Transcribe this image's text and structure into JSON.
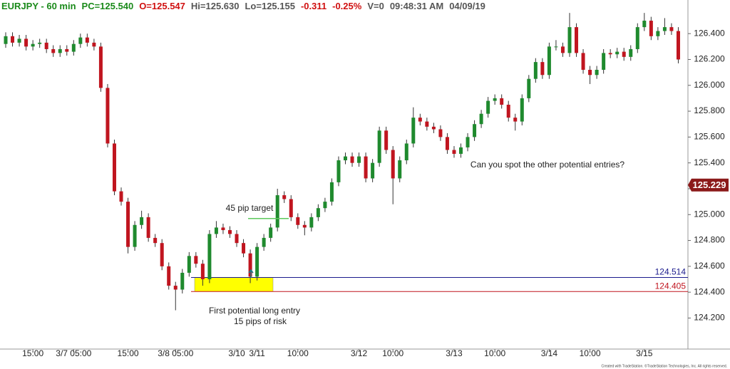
{
  "header": [
    {
      "text": "EURJPY - 60 min",
      "color": "#1a8a1a"
    },
    {
      "text": "PC=125.540",
      "color": "#1a8a1a"
    },
    {
      "text": "O=125.547",
      "color": "#d01010"
    },
    {
      "text": "Hi=125.630",
      "color": "#555555"
    },
    {
      "text": "Lo=125.155",
      "color": "#555555"
    },
    {
      "text": "-0.311",
      "color": "#d01010"
    },
    {
      "text": "-0.25%",
      "color": "#d01010"
    },
    {
      "text": "V=0",
      "color": "#555555"
    },
    {
      "text": "09:48:31 AM",
      "color": "#555555"
    },
    {
      "text": "04/09/19",
      "color": "#555555"
    }
  ],
  "chart_data": {
    "type": "candlestick",
    "categories": [
      null,
      null,
      null,
      null,
      "15:00",
      null,
      null,
      null,
      null,
      null,
      "3/7 05:00",
      null,
      null,
      null,
      null,
      null,
      null,
      null,
      "15:00",
      null,
      null,
      null,
      null,
      null,
      null,
      "3/8 05:00",
      null,
      null,
      null,
      null,
      null,
      null,
      null,
      null,
      "3/10",
      null,
      null,
      "3/11",
      null,
      null,
      null,
      null,
      null,
      "10:00",
      null,
      null,
      null,
      null,
      null,
      null,
      null,
      null,
      "3/12",
      null,
      null,
      null,
      null,
      "10:00",
      null,
      null,
      null,
      null,
      null,
      null,
      null,
      null,
      "3/13",
      null,
      null,
      null,
      null,
      null,
      "10:00",
      null,
      null,
      null,
      null,
      null,
      null,
      null,
      "3/14",
      null,
      null,
      null,
      null,
      null,
      "10:00",
      null,
      null,
      null,
      null,
      null,
      null,
      null,
      "3/15",
      null,
      null,
      null,
      null,
      null
    ],
    "open": [
      126.32,
      126.38,
      126.33,
      126.36,
      126.3,
      126.32,
      126.33,
      126.28,
      126.25,
      126.28,
      126.26,
      126.32,
      126.37,
      126.33,
      126.3,
      125.98,
      125.55,
      125.18,
      125.1,
      124.75,
      124.92,
      124.98,
      124.82,
      124.78,
      124.6,
      124.45,
      124.42,
      124.55,
      124.68,
      124.62,
      124.5,
      124.85,
      124.9,
      124.88,
      124.85,
      124.78,
      124.7,
      124.52,
      124.75,
      124.82,
      124.9,
      125.15,
      125.12,
      124.98,
      124.92,
      124.9,
      124.98,
      125.05,
      125.1,
      125.25,
      125.42,
      125.45,
      125.4,
      125.45,
      125.28,
      125.4,
      125.65,
      125.5,
      125.28,
      125.42,
      125.55,
      125.75,
      125.72,
      125.68,
      125.66,
      125.6,
      125.5,
      125.47,
      125.52,
      125.6,
      125.7,
      125.78,
      125.88,
      125.9,
      125.85,
      125.75,
      125.72,
      125.9,
      126.05,
      126.18,
      126.08,
      126.3,
      126.3,
      126.25,
      126.45,
      126.25,
      126.12,
      126.08,
      126.12,
      126.25,
      126.24,
      126.26,
      126.22,
      126.28,
      126.45,
      126.5,
      126.38,
      126.42,
      126.45,
      126.42
    ],
    "high": [
      126.41,
      126.41,
      126.39,
      126.39,
      126.35,
      126.36,
      126.36,
      126.31,
      126.31,
      126.31,
      126.35,
      126.4,
      126.4,
      126.36,
      126.33,
      126.01,
      125.58,
      125.21,
      125.13,
      124.95,
      125.03,
      125.01,
      124.85,
      124.81,
      124.63,
      124.48,
      124.58,
      124.71,
      124.71,
      124.65,
      124.88,
      124.95,
      124.93,
      124.91,
      124.88,
      124.81,
      124.73,
      124.78,
      124.85,
      124.93,
      125.2,
      125.18,
      125.15,
      125.01,
      124.95,
      125.01,
      125.08,
      125.13,
      125.28,
      125.45,
      125.48,
      125.48,
      125.48,
      125.48,
      125.43,
      125.68,
      125.68,
      125.53,
      125.45,
      125.58,
      125.83,
      125.78,
      125.75,
      125.71,
      125.69,
      125.63,
      125.53,
      125.55,
      125.63,
      125.73,
      125.81,
      125.91,
      125.93,
      125.93,
      125.88,
      125.78,
      125.93,
      126.08,
      126.21,
      126.21,
      126.33,
      126.35,
      126.33,
      126.56,
      126.48,
      126.28,
      126.15,
      126.15,
      126.28,
      126.28,
      126.29,
      126.29,
      126.31,
      126.48,
      126.56,
      126.53,
      126.45,
      126.52,
      126.48,
      126.45
    ],
    "low": [
      126.29,
      126.3,
      126.3,
      126.27,
      126.27,
      126.29,
      126.25,
      126.22,
      126.22,
      126.23,
      126.23,
      126.29,
      126.3,
      126.27,
      125.95,
      125.52,
      125.15,
      125.07,
      124.7,
      124.72,
      124.89,
      124.79,
      124.75,
      124.57,
      124.42,
      124.26,
      124.39,
      124.52,
      124.59,
      124.45,
      124.47,
      124.82,
      124.85,
      124.82,
      124.75,
      124.67,
      124.47,
      124.49,
      124.72,
      124.79,
      124.87,
      125.09,
      124.95,
      124.89,
      124.84,
      124.87,
      124.95,
      125.02,
      125.07,
      125.22,
      125.39,
      125.37,
      125.37,
      125.25,
      125.25,
      125.37,
      125.47,
      125.08,
      125.25,
      125.39,
      125.52,
      125.69,
      125.65,
      125.63,
      125.57,
      125.47,
      125.44,
      125.44,
      125.49,
      125.57,
      125.67,
      125.75,
      125.85,
      125.82,
      125.72,
      125.65,
      125.69,
      125.87,
      126.02,
      126.05,
      126.05,
      126.27,
      126.22,
      126.22,
      126.22,
      126.09,
      126.01,
      126.05,
      126.09,
      126.21,
      126.21,
      126.19,
      126.19,
      126.25,
      126.42,
      126.35,
      126.35,
      126.39,
      126.39,
      126.17
    ],
    "close": [
      126.38,
      126.33,
      126.36,
      126.3,
      126.32,
      126.33,
      126.28,
      126.25,
      126.28,
      126.26,
      126.32,
      126.37,
      126.33,
      126.3,
      125.98,
      125.55,
      125.18,
      125.1,
      124.75,
      124.92,
      124.98,
      124.82,
      124.78,
      124.6,
      124.45,
      124.42,
      124.55,
      124.68,
      124.62,
      124.5,
      124.85,
      124.9,
      124.88,
      124.85,
      124.78,
      124.7,
      124.52,
      124.75,
      124.82,
      124.9,
      125.15,
      125.12,
      124.98,
      124.92,
      124.9,
      124.98,
      125.05,
      125.1,
      125.25,
      125.42,
      125.45,
      125.4,
      125.45,
      125.28,
      125.4,
      125.65,
      125.5,
      125.28,
      125.42,
      125.55,
      125.75,
      125.72,
      125.68,
      125.66,
      125.6,
      125.5,
      125.47,
      125.52,
      125.6,
      125.7,
      125.78,
      125.88,
      125.9,
      125.85,
      125.75,
      125.72,
      125.9,
      126.05,
      126.18,
      126.08,
      126.3,
      126.3,
      126.25,
      126.45,
      126.25,
      126.12,
      126.08,
      126.12,
      126.25,
      126.24,
      126.26,
      126.22,
      126.28,
      126.45,
      126.5,
      126.38,
      126.42,
      126.45,
      126.42,
      126.2
    ],
    "up_color": "#1f8a2e",
    "down_color": "#c0151f",
    "ylim": [
      123.96,
      126.66
    ],
    "yticks": [
      {
        "value": 126.4,
        "label": "126.400"
      },
      {
        "value": 126.2,
        "label": "126.200"
      },
      {
        "value": 126.0,
        "label": "126.000"
      },
      {
        "value": 125.8,
        "label": "125.800"
      },
      {
        "value": 125.6,
        "label": "125.600"
      },
      {
        "value": 125.4,
        "label": "125.400"
      },
      {
        "value": 125.2,
        "label": "125.200"
      },
      {
        "value": 125.0,
        "label": "125.000"
      },
      {
        "value": 124.8,
        "label": "124.800"
      },
      {
        "value": 124.6,
        "label": "124.600"
      },
      {
        "value": 124.4,
        "label": "124.400"
      },
      {
        "value": 124.2,
        "label": "124.200"
      }
    ],
    "last_price": 125.229,
    "last_price_color": "#8b1a1a",
    "levels": [
      {
        "value": 124.514,
        "color": "#1a1a8c"
      },
      {
        "value": 124.405,
        "color": "#c0151f"
      }
    ],
    "highlight_color": "#ffff00",
    "target": {
      "value": 124.97,
      "label": "45 pip target",
      "color": "#5cc85c"
    },
    "annotations": [
      "First potential long entry",
      "15 pips of risk",
      "Can you spot the other potential entries?"
    ],
    "footer": "Created with TradeStation. ©TradeStation Technologies, Inc. All rights reserved."
  }
}
